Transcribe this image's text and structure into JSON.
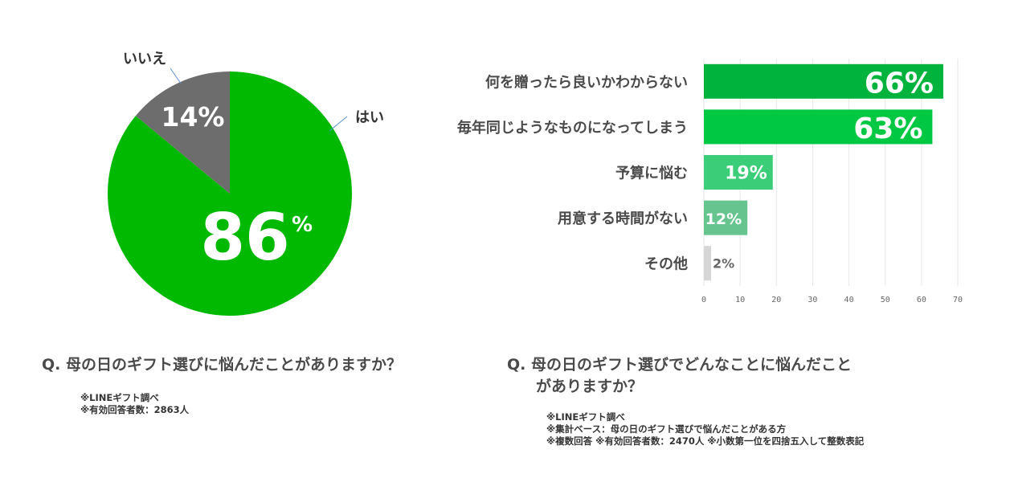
{
  "chart_data": [
    {
      "type": "pie",
      "slices": [
        {
          "label": "はい",
          "value": 86,
          "value_label": "86",
          "unit": "%",
          "color": "#00b900"
        },
        {
          "label": "いいえ",
          "value": 14,
          "value_label": "14%",
          "color": "#6d6d6d"
        }
      ],
      "start": "12 o'clock",
      "legend": "none"
    },
    {
      "type": "bar",
      "orientation": "horizontal",
      "categories": [
        "何を贈ったら良いかわからない",
        "毎年同じようなものになってしまう",
        "予算に悩む",
        "用意する時間がない",
        "その他"
      ],
      "values": [
        66,
        63,
        19,
        12,
        2
      ],
      "value_labels": [
        "66%",
        "63%",
        "19%",
        "12%",
        "2%"
      ],
      "colors": [
        "#00b33c",
        "#00c843",
        "#3ccd78",
        "#66c58e",
        "#d6d6d6"
      ],
      "xlim": [
        0,
        70
      ],
      "xticks": [
        "0",
        "10",
        "20",
        "30",
        "40",
        "50",
        "60",
        "70"
      ],
      "grid": "vertical",
      "legend": "none"
    }
  ],
  "captions": {
    "left_question": "Q.  母の日のギフト選びに悩んだことがありますか？",
    "left_notes": [
      "※LINEギフト調べ",
      "※有効回答者数：2863人"
    ],
    "right_question_lines": [
      "Q.  母の日のギフト選びでどんなことに悩んだこと",
      "がありますか？"
    ],
    "right_notes": [
      "※LINEギフト調べ",
      "※集計ベース：母の日のギフト選びで悩んだことがある方",
      "※複数回答  ※有効回答者数：2470人  ※小数第一位を四捨五入して整数表記"
    ]
  }
}
